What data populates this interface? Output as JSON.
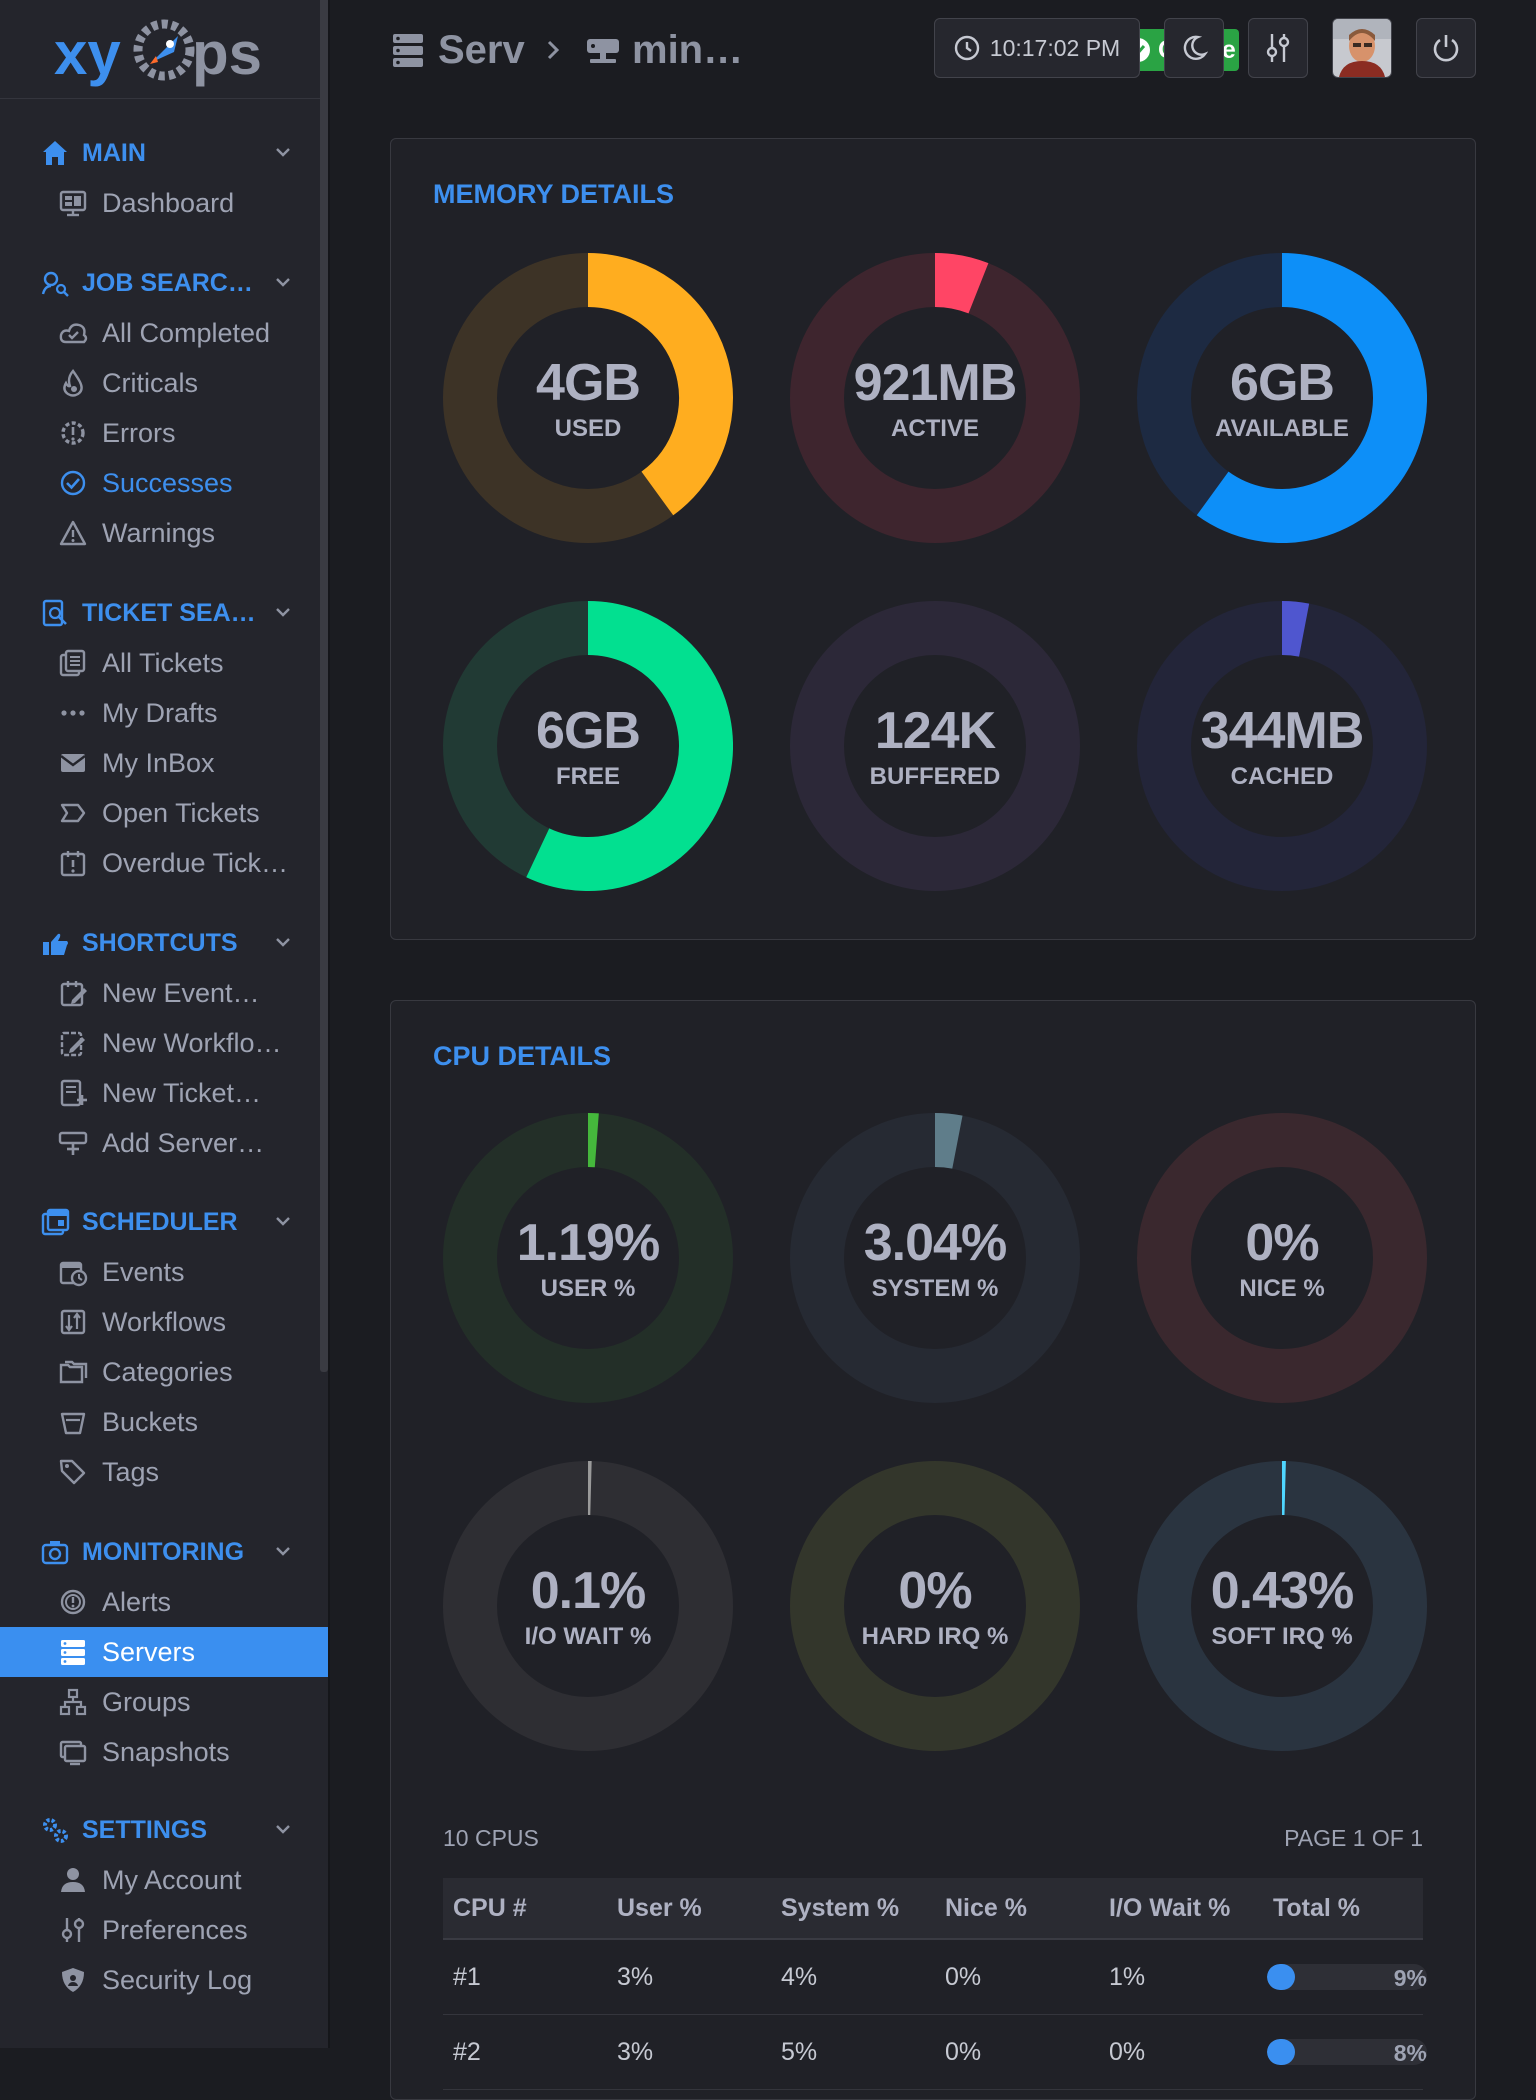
{
  "app": {
    "logo": "xyOps"
  },
  "header": {
    "crumb1": "Serv",
    "crumb2": "min…",
    "status": "Online",
    "time": "10:17:02 PM"
  },
  "sidebar": {
    "sections": [
      {
        "key": "main",
        "title": "MAIN",
        "icon": "home-icon",
        "items": [
          {
            "label": "Dashboard",
            "icon": "dashboard-icon"
          }
        ]
      },
      {
        "key": "job-search",
        "title": "JOB SEARC…",
        "icon": "job-search-icon",
        "items": [
          {
            "label": "All Completed",
            "icon": "cloud-check-icon"
          },
          {
            "label": "Criticals",
            "icon": "fire-icon"
          },
          {
            "label": "Errors",
            "icon": "error-gear-icon"
          },
          {
            "label": "Successes",
            "icon": "check-circle-icon"
          },
          {
            "label": "Warnings",
            "icon": "warning-triangle-icon"
          }
        ]
      },
      {
        "key": "ticket-search",
        "title": "TICKET SEA…",
        "icon": "ticket-search-icon",
        "items": [
          {
            "label": "All Tickets",
            "icon": "tickets-icon"
          },
          {
            "label": "My Drafts",
            "icon": "dots-icon"
          },
          {
            "label": "My InBox",
            "icon": "envelope-icon"
          },
          {
            "label": "Open Tickets",
            "icon": "tag-outline-icon"
          },
          {
            "label": "Overdue Tick…",
            "icon": "calendar-alert-icon"
          }
        ]
      },
      {
        "key": "shortcuts",
        "title": "SHORTCUTS",
        "icon": "hand-point-icon",
        "items": [
          {
            "label": "New Event…",
            "icon": "calendar-edit-icon"
          },
          {
            "label": "New Workflo…",
            "icon": "clipboard-edit-icon"
          },
          {
            "label": "New Ticket…",
            "icon": "ticket-plus-icon"
          },
          {
            "label": "Add Server…",
            "icon": "server-plus-icon"
          }
        ]
      },
      {
        "key": "scheduler",
        "title": "SCHEDULER",
        "icon": "scheduler-icon",
        "items": [
          {
            "label": "Events",
            "icon": "calendar-clock-icon"
          },
          {
            "label": "Workflows",
            "icon": "workflow-icon"
          },
          {
            "label": "Categories",
            "icon": "folders-icon"
          },
          {
            "label": "Buckets",
            "icon": "bucket-icon"
          },
          {
            "label": "Tags",
            "icon": "tags-icon"
          }
        ]
      },
      {
        "key": "monitoring",
        "title": "MONITORING",
        "icon": "camera-icon",
        "items": [
          {
            "label": "Alerts",
            "icon": "alert-circle-icon"
          },
          {
            "label": "Servers",
            "icon": "servers-icon",
            "active": true
          },
          {
            "label": "Groups",
            "icon": "sitemap-icon"
          },
          {
            "label": "Snapshots",
            "icon": "monitor-icon"
          }
        ]
      },
      {
        "key": "settings",
        "title": "SETTINGS",
        "icon": "cogs-icon",
        "items": [
          {
            "label": "My Account",
            "icon": "user-icon"
          },
          {
            "label": "Preferences",
            "icon": "sliders-icon"
          },
          {
            "label": "Security Log",
            "icon": "shield-icon"
          }
        ]
      }
    ]
  },
  "memory": {
    "title": "MEMORY DETAILS",
    "donuts": [
      {
        "value": "4GB",
        "label": "USED",
        "fraction": 0.4,
        "color": "#ffad1f",
        "track": "#3d3326"
      },
      {
        "value": "921MB",
        "label": "ACTIVE",
        "fraction": 0.06,
        "color": "#ff4565",
        "track": "#3e252e"
      },
      {
        "value": "6GB",
        "label": "AVAILABLE",
        "fraction": 0.6,
        "color": "#0d8ff8",
        "track": "#1d2a42"
      },
      {
        "value": "6GB",
        "label": "FREE",
        "fraction": 0.57,
        "color": "#02e090",
        "track": "#213a34"
      },
      {
        "value": "124K",
        "label": "BUFFERED",
        "fraction": 0.0,
        "color": "#6b5cff",
        "track": "#2c2838"
      },
      {
        "value": "344MB",
        "label": "CACHED",
        "fraction": 0.03,
        "color": "#4f56cf",
        "track": "#232539"
      }
    ]
  },
  "cpu": {
    "title": "CPU DETAILS",
    "donuts": [
      {
        "value": "1.19%",
        "label": "USER %",
        "fraction": 0.0119,
        "color": "#45b83c",
        "track": "#232f28"
      },
      {
        "value": "3.04%",
        "label": "SYSTEM %",
        "fraction": 0.0304,
        "color": "#5f7d8a",
        "track": "#262a33"
      },
      {
        "value": "0%",
        "label": "NICE %",
        "fraction": 0.0,
        "color": "#d24b4b",
        "track": "#3a282e"
      },
      {
        "value": "0.1%",
        "label": "I/O WAIT %",
        "fraction": 0.001,
        "color": "#9a9a9a",
        "track": "#2e2e33"
      },
      {
        "value": "0%",
        "label": "HARD IRQ %",
        "fraction": 0.0,
        "color": "#9fb04a",
        "track": "#33362b"
      },
      {
        "value": "0.43%",
        "label": "SOFT IRQ %",
        "fraction": 0.0043,
        "color": "#4fd6ff",
        "track": "#2a3440"
      }
    ],
    "count_label": "10 CPUS",
    "page_label": "PAGE 1 OF 1",
    "columns": [
      "CPU #",
      "User %",
      "System %",
      "Nice %",
      "I/O Wait %",
      "Total %"
    ],
    "rows": [
      {
        "cpu": "#1",
        "user": "3%",
        "system": "4%",
        "nice": "0%",
        "iowait": "1%",
        "total": "9%",
        "total_fraction": 0.09
      },
      {
        "cpu": "#2",
        "user": "3%",
        "system": "5%",
        "nice": "0%",
        "iowait": "0%",
        "total": "8%",
        "total_fraction": 0.08
      }
    ]
  }
}
